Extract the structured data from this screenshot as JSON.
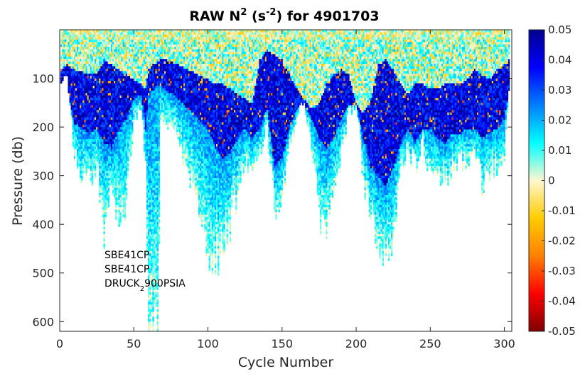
{
  "chart_data": {
    "type": "heatmap",
    "title": "RAW N2 (s-2) for 4901703",
    "title_parts": {
      "pre": "RAW N",
      "sup1": "2",
      "mid": " (s",
      "sup2": "-2",
      "post": ") for 4901703"
    },
    "xlabel": "Cycle Number",
    "ylabel": "Pressure (db)",
    "xlim": [
      0,
      305
    ],
    "ylim": [
      0,
      620
    ],
    "y_reversed": true,
    "xticks": [
      0,
      50,
      100,
      150,
      200,
      250,
      300
    ],
    "yticks": [
      100,
      200,
      300,
      400,
      500,
      600
    ],
    "colorbar": {
      "range": [
        -0.05,
        0.05
      ],
      "colormap": "jet",
      "ticks": [
        "0.05",
        "0.04",
        "0.03",
        "0.02",
        "0.01",
        "0",
        "-0.01",
        "-0.02",
        "-0.03",
        "-0.04",
        "-0.05"
      ]
    },
    "annotations": {
      "line1": "SBE41CP",
      "line2": "SBE41CP",
      "line3_pre": "DRUCK",
      "line3_sub": "2",
      "line3_post": "900PSIA"
    },
    "profile_depth": {
      "cycles": [
        0,
        5,
        10,
        15,
        20,
        25,
        30,
        35,
        40,
        45,
        50,
        55,
        58,
        60,
        63,
        66,
        68,
        72,
        80,
        90,
        100,
        105,
        110,
        115,
        120,
        125,
        130,
        135,
        140,
        145,
        150,
        155,
        160,
        165,
        170,
        175,
        180,
        185,
        190,
        195,
        200,
        205,
        210,
        215,
        220,
        225,
        230,
        235,
        240,
        245,
        250,
        255,
        260,
        265,
        270,
        275,
        280,
        285,
        290,
        295,
        300,
        303
      ],
      "max_pressure": [
        100,
        90,
        250,
        300,
        310,
        280,
        420,
        330,
        390,
        360,
        180,
        160,
        280,
        620,
        620,
        600,
        200,
        180,
        220,
        330,
        450,
        470,
        440,
        400,
        330,
        260,
        300,
        250,
        200,
        370,
        340,
        250,
        170,
        150,
        240,
        380,
        400,
        360,
        250,
        170,
        150,
        300,
        380,
        440,
        460,
        420,
        280,
        240,
        280,
        230,
        300,
        310,
        300,
        280,
        270,
        260,
        250,
        310,
        300,
        280,
        250,
        130
      ],
      "dark_band_top": [
        80,
        70,
        80,
        85,
        90,
        90,
        60,
        70,
        80,
        90,
        100,
        110,
        120,
        80,
        70,
        65,
        60,
        60,
        70,
        85,
        100,
        110,
        110,
        120,
        130,
        140,
        150,
        60,
        40,
        50,
        60,
        90,
        120,
        140,
        160,
        150,
        110,
        90,
        80,
        90,
        150,
        170,
        140,
        70,
        60,
        80,
        110,
        130,
        110,
        110,
        120,
        120,
        110,
        110,
        110,
        100,
        80,
        90,
        100,
        80,
        70,
        60
      ],
      "dark_band_bottom": [
        110,
        120,
        190,
        200,
        210,
        200,
        230,
        240,
        200,
        180,
        140,
        130,
        200,
        130,
        120,
        110,
        110,
        120,
        140,
        170,
        200,
        240,
        260,
        250,
        220,
        200,
        220,
        200,
        160,
        280,
        260,
        200,
        160,
        150,
        180,
        220,
        240,
        220,
        180,
        150,
        150,
        220,
        280,
        300,
        320,
        280,
        230,
        200,
        230,
        200,
        200,
        220,
        230,
        210,
        210,
        200,
        200,
        220,
        210,
        200,
        180,
        120
      ]
    }
  }
}
